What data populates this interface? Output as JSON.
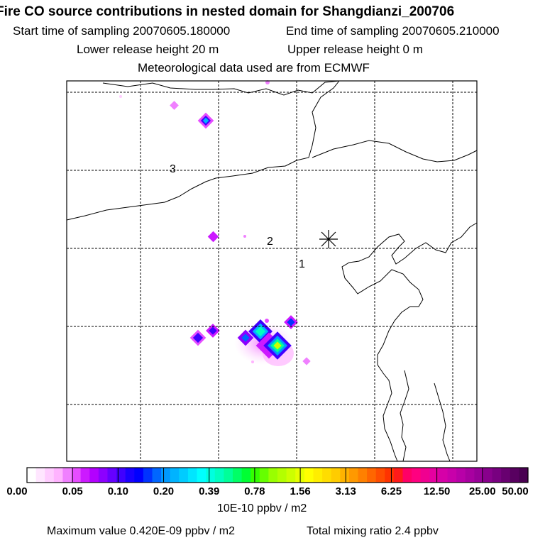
{
  "header": {
    "title": "Fire CO source contributions in nested domain for Shangdianzi_200706",
    "start_time": "Start time of sampling 20070605.180000",
    "end_time": "End time of sampling 20070605.210000",
    "lower_release": "Lower release height   20 m",
    "upper_release": "Upper release height    0 m",
    "met_data": "Meteorological data used are from ECMWF"
  },
  "map": {
    "trajectory_labels": [
      "3",
      "2",
      "1"
    ],
    "station_marker": "star-icon",
    "colors": {
      "frame": "#000000",
      "grid": "#000000",
      "coast": "#000000"
    }
  },
  "legend": {
    "ticks": [
      "0.00",
      "0.05",
      "0.10",
      "0.20",
      "0.39",
      "0.78",
      "1.56",
      "3.13",
      "6.25",
      "12.50",
      "25.00",
      "50.00"
    ],
    "unit": "10E-10 ppbv / m2",
    "colors": [
      "#ffffff",
      "#ffe6ff",
      "#ffccff",
      "#ffb3ff",
      "#f080ff",
      "#e64dff",
      "#cc1aff",
      "#b300ff",
      "#8c00ff",
      "#6600ff",
      "#4000ff",
      "#1a00ff",
      "#0000ff",
      "#0033ff",
      "#0066ff",
      "#0099ff",
      "#00b3ff",
      "#00ccff",
      "#00e6ff",
      "#00ffff",
      "#00ffe0",
      "#00ffc0",
      "#00ff99",
      "#00ff66",
      "#00ff33",
      "#33ff00",
      "#66ff00",
      "#99ff00",
      "#b3ff00",
      "#ccff00",
      "#e6ff00",
      "#ffff00",
      "#ffee00",
      "#ffdd00",
      "#ffcc00",
      "#ffb300",
      "#ff9900",
      "#ff8000",
      "#ff6600",
      "#ff4d00",
      "#ff3300",
      "#ff1a1a",
      "#ff0066",
      "#ff0080",
      "#f00090",
      "#e600a0",
      "#d600a8",
      "#c800aa",
      "#b800a8",
      "#a800a0",
      "#980098",
      "#88008c",
      "#780080",
      "#680070",
      "#580060",
      "#4a0052"
    ]
  },
  "footer": {
    "max_value": "Maximum value  0.420E-09 ppbv / m2",
    "total_mixing": "Total mixing ratio       2.4 ppbv"
  }
}
